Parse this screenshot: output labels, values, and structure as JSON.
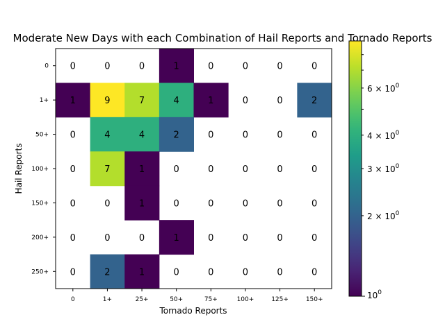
{
  "chart_data": {
    "type": "heatmap",
    "title": "Moderate New Days with each Combination of Hail Reports and Tornado Reports",
    "xlabel": "Tornado Reports",
    "ylabel": "Hail Reports",
    "x_categories": [
      "0",
      "1+",
      "25+",
      "50+",
      "75+",
      "100+",
      "125+",
      "150+"
    ],
    "y_categories": [
      "0",
      "1+",
      "50+",
      "100+",
      "150+",
      "200+",
      "250+"
    ],
    "values": [
      [
        0,
        0,
        0,
        1,
        0,
        0,
        0,
        0
      ],
      [
        1,
        9,
        7,
        4,
        1,
        0,
        0,
        2
      ],
      [
        0,
        4,
        4,
        2,
        0,
        0,
        0,
        0
      ],
      [
        0,
        7,
        1,
        0,
        0,
        0,
        0,
        0
      ],
      [
        0,
        0,
        1,
        0,
        0,
        0,
        0,
        0
      ],
      [
        0,
        0,
        0,
        1,
        0,
        0,
        0,
        0
      ],
      [
        0,
        2,
        1,
        0,
        0,
        0,
        0,
        0
      ]
    ],
    "zero_cells_colored": false,
    "colormap": "viridis",
    "color_scale": "log",
    "color_range": [
      1,
      9
    ],
    "colorbar": {
      "position": "right",
      "major_ticks": [
        {
          "value": 1,
          "base": "10",
          "exp": "0"
        }
      ],
      "minor_labeled_ticks": [
        {
          "value": 2,
          "mant": "2",
          "base": "10",
          "exp": "0"
        },
        {
          "value": 3,
          "mant": "3",
          "base": "10",
          "exp": "0"
        },
        {
          "value": 4,
          "mant": "4",
          "base": "10",
          "exp": "0"
        },
        {
          "value": 6,
          "mant": "6",
          "base": "10",
          "exp": "0"
        }
      ],
      "minor_unlabeled_ticks": [
        5,
        7,
        8,
        9
      ]
    }
  }
}
